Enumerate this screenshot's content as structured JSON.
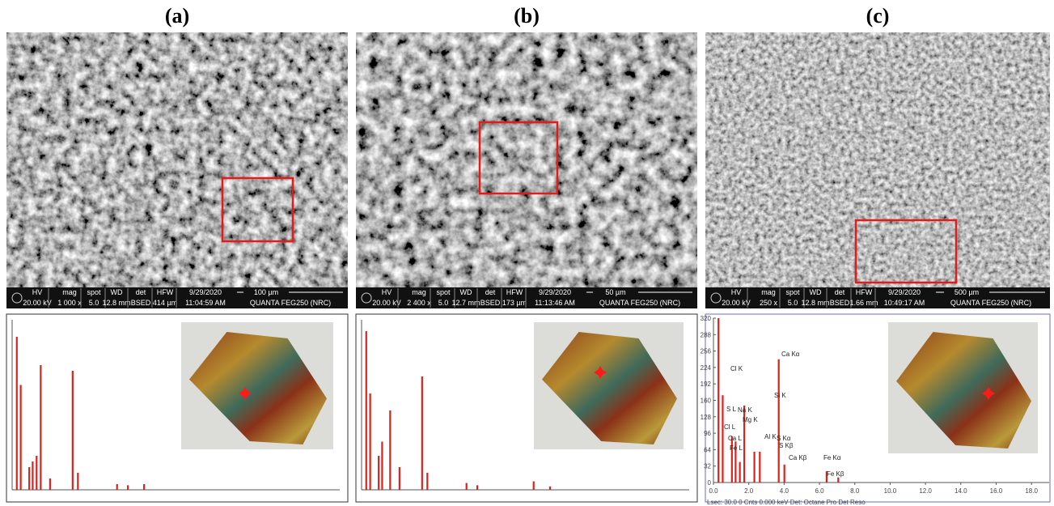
{
  "sem_headers": [
    "HV",
    "mag",
    "spot",
    "WD",
    "det",
    "HFW"
  ],
  "panels": [
    {
      "label": "(a)",
      "sem": {
        "hv": "20.00 kV",
        "mag": "1 000 x",
        "spot": "5.0",
        "wd": "12.8 mm",
        "det": "BSED",
        "hfw": "414 µm",
        "date": "9/29/2020",
        "time": "11:04:59 AM",
        "scale": "100 µm",
        "instrument": "QUANTA FEG250 (NRC)"
      }
    },
    {
      "label": "(b)",
      "sem": {
        "hv": "20.00 kV",
        "mag": "2 400 x",
        "spot": "5.0",
        "wd": "12.7 mm",
        "det": "BSED",
        "hfw": "173 µm",
        "date": "9/29/2020",
        "time": "11:13:46 AM",
        "scale": "50 µm",
        "instrument": "QUANTA FEG250 (NRC)"
      }
    },
    {
      "label": "(c)",
      "sem": {
        "hv": "20.00 kV",
        "mag": "250 x",
        "spot": "5.0",
        "wd": "12.8 mm",
        "det": "BSED",
        "hfw": "1.66 mm",
        "date": "9/29/2020",
        "time": "10:49:17 AM",
        "scale": "500 µm",
        "instrument": "QUANTA FEG250 (NRC)"
      }
    }
  ],
  "chart_data": [
    {
      "type": "bar",
      "xlim": [
        0,
        20
      ],
      "ylim": [
        0,
        300
      ],
      "color": "#e0201a",
      "x": [
        0.28,
        0.52,
        1.04,
        1.25,
        1.49,
        1.74,
        2.31,
        3.69,
        4.01,
        6.4,
        7.06,
        8.05
      ],
      "values": [
        270,
        185,
        40,
        50,
        60,
        220,
        20,
        210,
        30,
        10,
        8,
        10
      ]
    },
    {
      "type": "bar",
      "xlim": [
        0,
        20
      ],
      "ylim": [
        0,
        300
      ],
      "color": "#e0201a",
      "x": [
        0.28,
        0.52,
        1.04,
        1.25,
        1.74,
        2.31,
        3.69,
        4.01,
        6.4,
        7.06,
        10.5,
        11.5
      ],
      "values": [
        280,
        170,
        60,
        85,
        140,
        40,
        200,
        30,
        12,
        8,
        15,
        6
      ]
    },
    {
      "type": "bar",
      "xlim": [
        0,
        19
      ],
      "ylim": [
        0,
        320
      ],
      "color": "#e0201a",
      "x": [
        0.28,
        0.52,
        1.04,
        1.25,
        1.49,
        1.74,
        2.31,
        2.62,
        3.69,
        4.01,
        6.4,
        7.06
      ],
      "values": [
        320,
        170,
        90,
        80,
        40,
        150,
        60,
        60,
        240,
        35,
        22,
        10
      ],
      "xticks": [
        {
          "value": 0,
          "label": "0.0"
        },
        {
          "value": 2,
          "label": "2.0"
        },
        {
          "value": 4,
          "label": "4.0"
        },
        {
          "value": 6,
          "label": "6.0"
        },
        {
          "value": 8,
          "label": "8.0"
        },
        {
          "value": 10,
          "label": "10.0"
        },
        {
          "value": 12,
          "label": "12.0"
        },
        {
          "value": 14,
          "label": "14.0"
        },
        {
          "value": 16,
          "label": "16.0"
        },
        {
          "value": 18,
          "label": "18.0"
        }
      ],
      "yticks": [
        0,
        32,
        64,
        96,
        128,
        160,
        192,
        224,
        256,
        288,
        320
      ],
      "annotations": [
        "Ca Kα",
        "Cl K",
        "Si K",
        "S L",
        "Na K",
        "Mg K",
        "Cl L",
        "Ca L",
        "Fe L",
        "Al K",
        "S Kα",
        "S Kβ",
        "Ca Kβ",
        "Fe Kα",
        "Fe Kβ"
      ],
      "footer": "Lsec: 30.0 0 Cnts 0.000 keV Det: Octane Pro Det       Reso"
    }
  ]
}
